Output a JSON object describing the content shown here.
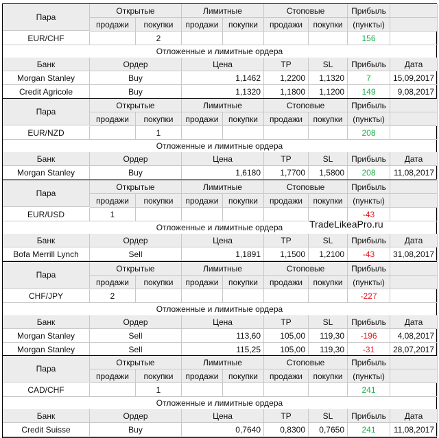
{
  "columns": {
    "pair": "Пара",
    "open": "Открытые",
    "limit": "Лимитные",
    "stop": "Стоповые",
    "profit": "Прибыль",
    "sell": "продажи",
    "buy": "покупки",
    "points": "(пункты)"
  },
  "order_columns": {
    "bank": "Банк",
    "order": "Ордер",
    "price": "Цена",
    "tp": "TP",
    "sl": "SL",
    "profit": "Прибыль",
    "date": "Дата"
  },
  "section_title": "Отложенные и лимитные ордера",
  "watermark": "TradeLikeaPro.ru",
  "blocks": [
    {
      "pair": "EUR/CHF",
      "open_sell": "",
      "open_buy": "2",
      "profit": "156",
      "profit_color": "#1fae4b",
      "orders": [
        {
          "bank": "Morgan Stanley",
          "order": "Buy",
          "price": "1,1462",
          "tp": "1,2200",
          "sl": "1,1320",
          "profit": "7",
          "date": "15,09,2017",
          "profit_color": "#1fae4b"
        },
        {
          "bank": "Credit Agricole",
          "order": "Buy",
          "price": "1,1320",
          "tp": "1,1800",
          "sl": "1,1200",
          "profit": "149",
          "date": "9,08,2017",
          "profit_color": "#1fae4b"
        }
      ]
    },
    {
      "pair": "EUR/NZD",
      "open_sell": "",
      "open_buy": "1",
      "profit": "208",
      "profit_color": "#1fae4b",
      "orders": [
        {
          "bank": "Morgan Stanley",
          "order": "Buy",
          "price": "1,6180",
          "tp": "1,7700",
          "sl": "1,5800",
          "profit": "208",
          "date": "11,08,2017",
          "profit_color": "#1fae4b"
        }
      ]
    },
    {
      "pair": "EUR/USD",
      "open_sell": "1",
      "open_buy": "",
      "profit": "-43",
      "profit_color": "#e8181e",
      "orders": [
        {
          "bank": "Bofa Merrill Lynch",
          "order": "Sell",
          "price": "1,1891",
          "tp": "1,1500",
          "sl": "1,2100",
          "profit": "-43",
          "date": "31,08,2017",
          "profit_color": "#e8181e"
        }
      ]
    },
    {
      "pair": "CHF/JPY",
      "open_sell": "2",
      "open_buy": "",
      "profit": "-227",
      "profit_color": "#e8181e",
      "orders": [
        {
          "bank": "Morgan Stanley",
          "order": "Sell",
          "price": "113,60",
          "tp": "105,00",
          "sl": "119,30",
          "profit": "-196",
          "date": "4,08,2017",
          "profit_color": "#e8181e"
        },
        {
          "bank": "Morgan Stanley",
          "order": "Sell",
          "price": "115,25",
          "tp": "105,00",
          "sl": "119,30",
          "profit": "-31",
          "date": "28,07,2017",
          "profit_color": "#e8181e"
        }
      ]
    },
    {
      "pair": "CAD/CHF",
      "open_sell": "",
      "open_buy": "1",
      "profit": "241",
      "profit_color": "#1fae4b",
      "orders": [
        {
          "bank": "Credit Suisse",
          "order": "Buy",
          "price": "0,7640",
          "tp": "0,8300",
          "sl": "0,7650",
          "profit": "241",
          "date": "11,08,2017",
          "profit_color": "#1fae4b"
        }
      ]
    }
  ]
}
